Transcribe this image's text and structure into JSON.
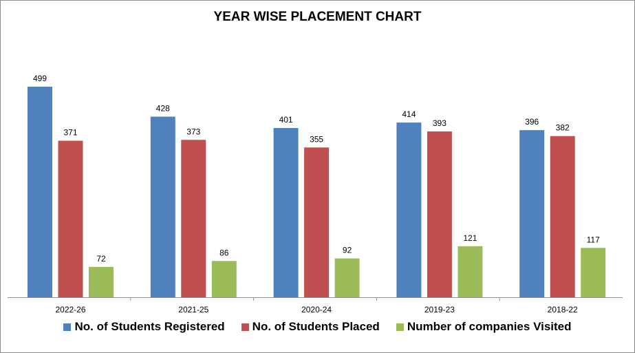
{
  "chart_data": {
    "type": "bar",
    "title": "YEAR WISE PLACEMENT CHART",
    "categories": [
      "2022-26",
      "2021-25",
      "2020-24",
      "2019-23",
      "2018-22"
    ],
    "series": [
      {
        "name": "No. of Students Registered",
        "color": "#4f81bd",
        "values": [
          499,
          428,
          401,
          414,
          396
        ]
      },
      {
        "name": "No. of Students Placed",
        "color": "#c0504d",
        "values": [
          371,
          373,
          355,
          393,
          382
        ]
      },
      {
        "name": "Number of companies Visited",
        "color": "#9bbb59",
        "values": [
          72,
          86,
          92,
          121,
          117
        ]
      }
    ],
    "ylim": [
      0,
      500
    ],
    "data_labels": true,
    "grid": false,
    "legend_position": "bottom"
  }
}
